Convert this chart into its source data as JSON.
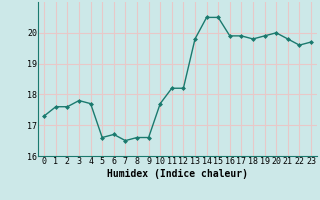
{
  "x": [
    0,
    1,
    2,
    3,
    4,
    5,
    6,
    7,
    8,
    9,
    10,
    11,
    12,
    13,
    14,
    15,
    16,
    17,
    18,
    19,
    20,
    21,
    22,
    23
  ],
  "y": [
    17.3,
    17.6,
    17.6,
    17.8,
    17.7,
    16.6,
    16.7,
    16.5,
    16.6,
    16.6,
    17.7,
    18.2,
    18.2,
    19.8,
    20.5,
    20.5,
    19.9,
    19.9,
    19.8,
    19.9,
    20.0,
    19.8,
    19.6,
    19.7
  ],
  "line_color": "#1a7a6e",
  "marker": "D",
  "marker_size": 2.0,
  "bg_color": "#cce8e8",
  "grid_color": "#e8c8c8",
  "xlabel": "Humidex (Indice chaleur)",
  "xlabel_fontsize": 7,
  "tick_fontsize": 6,
  "ylim": [
    16,
    21
  ],
  "yticks": [
    16,
    17,
    18,
    19,
    20
  ],
  "xticks": [
    0,
    1,
    2,
    3,
    4,
    5,
    6,
    7,
    8,
    9,
    10,
    11,
    12,
    13,
    14,
    15,
    16,
    17,
    18,
    19,
    20,
    21,
    22,
    23
  ],
  "line_width": 1.0
}
